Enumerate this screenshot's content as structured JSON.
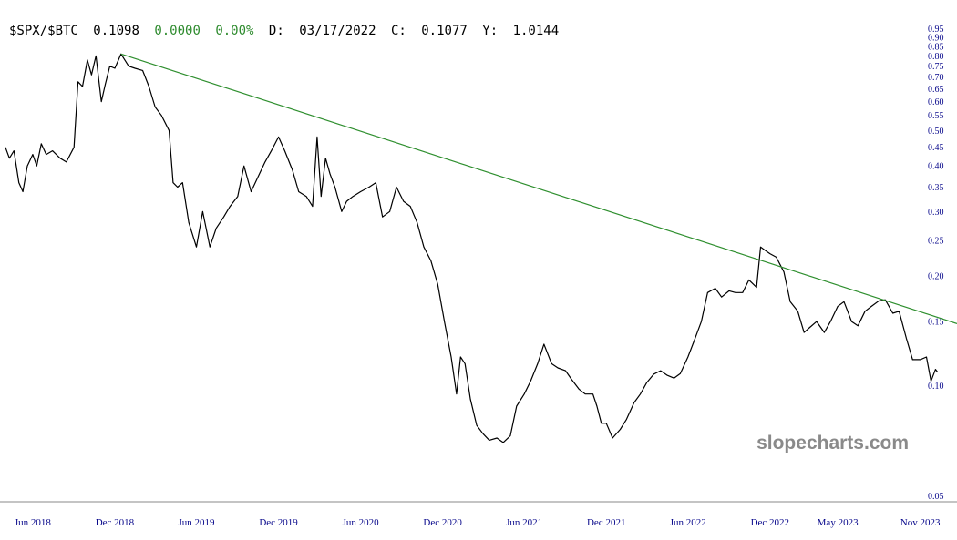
{
  "header": {
    "symbol": "$SPX/$BTC",
    "price": "0.1098",
    "change": "0.0000",
    "change_pct": "0.00%",
    "date_label": "D:",
    "date": "03/17/2022",
    "close_label": "C:",
    "close": "0.1077",
    "y_label": "Y:",
    "y_value": "1.0144"
  },
  "watermark": "slopecharts.com",
  "colors": {
    "price_line": "#000000",
    "trend_line": "#2f8f2f",
    "positive": "#2e8b2e",
    "axis_text": "#0a0a8c",
    "axis_line": "#888888",
    "watermark": "#8a8a8a"
  },
  "chart_data": {
    "type": "line",
    "y_scale": "log",
    "ylim": [
      0.05,
      0.95
    ],
    "y_ticks": [
      0.05,
      0.1,
      0.15,
      0.2,
      0.25,
      0.3,
      0.35,
      0.4,
      0.45,
      0.5,
      0.55,
      0.6,
      0.65,
      0.7,
      0.75,
      0.8,
      0.85,
      0.9,
      0.95
    ],
    "y_tick_labels": [
      "0.05",
      "0.10",
      "0.15",
      "0.20",
      "0.25",
      "0.30",
      "0.35",
      "0.40",
      "0.45",
      "0.50",
      "0.55",
      "0.60",
      "0.65",
      "0.70",
      "0.75",
      "0.80",
      "0.85",
      "0.90",
      "0.95"
    ],
    "xlim": [
      "2018-03-20",
      "2024-01-22"
    ],
    "x_ticks": [
      "2018-06-01",
      "2018-12-01",
      "2019-06-01",
      "2019-12-01",
      "2020-06-01",
      "2020-12-01",
      "2021-06-01",
      "2021-12-01",
      "2022-06-01",
      "2022-12-01",
      "2023-05-01",
      "2023-11-01"
    ],
    "x_tick_labels": [
      "Jun 2018",
      "Dec 2018",
      "Jun 2019",
      "Dec 2019",
      "Jun 2020",
      "Dec 2020",
      "Jun 2021",
      "Dec 2021",
      "Jun 2022",
      "Dec 2022",
      "May 2023",
      "Nov 2023"
    ],
    "grid": false,
    "series": [
      {
        "values": [
          [
            "2018-04-01",
            0.45
          ],
          [
            "2018-04-10",
            0.42
          ],
          [
            "2018-04-20",
            0.44
          ],
          [
            "2018-05-01",
            0.36
          ],
          [
            "2018-05-10",
            0.34
          ],
          [
            "2018-05-20",
            0.4
          ],
          [
            "2018-06-01",
            0.43
          ],
          [
            "2018-06-10",
            0.4
          ],
          [
            "2018-06-20",
            0.46
          ],
          [
            "2018-07-01",
            0.43
          ],
          [
            "2018-07-15",
            0.44
          ],
          [
            "2018-08-01",
            0.42
          ],
          [
            "2018-08-15",
            0.41
          ],
          [
            "2018-09-01",
            0.45
          ],
          [
            "2018-09-10",
            0.68
          ],
          [
            "2018-09-20",
            0.66
          ],
          [
            "2018-10-01",
            0.78
          ],
          [
            "2018-10-10",
            0.71
          ],
          [
            "2018-10-20",
            0.8
          ],
          [
            "2018-11-01",
            0.6
          ],
          [
            "2018-11-10",
            0.67
          ],
          [
            "2018-11-20",
            0.75
          ],
          [
            "2018-12-01",
            0.74
          ],
          [
            "2018-12-15",
            0.81
          ],
          [
            "2019-01-01",
            0.75
          ],
          [
            "2019-01-15",
            0.74
          ],
          [
            "2019-02-01",
            0.73
          ],
          [
            "2019-02-15",
            0.66
          ],
          [
            "2019-03-01",
            0.58
          ],
          [
            "2019-03-15",
            0.55
          ],
          [
            "2019-04-01",
            0.5
          ],
          [
            "2019-04-10",
            0.36
          ],
          [
            "2019-04-20",
            0.35
          ],
          [
            "2019-05-01",
            0.36
          ],
          [
            "2019-05-15",
            0.28
          ],
          [
            "2019-06-01",
            0.24
          ],
          [
            "2019-06-15",
            0.3
          ],
          [
            "2019-07-01",
            0.24
          ],
          [
            "2019-07-15",
            0.27
          ],
          [
            "2019-08-01",
            0.29
          ],
          [
            "2019-08-15",
            0.31
          ],
          [
            "2019-09-01",
            0.33
          ],
          [
            "2019-09-15",
            0.4
          ],
          [
            "2019-10-01",
            0.34
          ],
          [
            "2019-10-15",
            0.37
          ],
          [
            "2019-11-01",
            0.41
          ],
          [
            "2019-11-15",
            0.44
          ],
          [
            "2019-12-01",
            0.48
          ],
          [
            "2019-12-15",
            0.44
          ],
          [
            "2020-01-01",
            0.39
          ],
          [
            "2020-01-15",
            0.34
          ],
          [
            "2020-02-01",
            0.33
          ],
          [
            "2020-02-15",
            0.31
          ],
          [
            "2020-02-25",
            0.48
          ],
          [
            "2020-03-05",
            0.33
          ],
          [
            "2020-03-15",
            0.42
          ],
          [
            "2020-03-25",
            0.38
          ],
          [
            "2020-04-05",
            0.35
          ],
          [
            "2020-04-20",
            0.3
          ],
          [
            "2020-05-01",
            0.32
          ],
          [
            "2020-05-15",
            0.33
          ],
          [
            "2020-06-01",
            0.34
          ],
          [
            "2020-06-20",
            0.35
          ],
          [
            "2020-07-05",
            0.36
          ],
          [
            "2020-07-20",
            0.29
          ],
          [
            "2020-08-05",
            0.3
          ],
          [
            "2020-08-20",
            0.35
          ],
          [
            "2020-09-05",
            0.32
          ],
          [
            "2020-09-20",
            0.31
          ],
          [
            "2020-10-05",
            0.28
          ],
          [
            "2020-10-20",
            0.24
          ],
          [
            "2020-11-05",
            0.22
          ],
          [
            "2020-11-20",
            0.19
          ],
          [
            "2020-12-05",
            0.15
          ],
          [
            "2020-12-20",
            0.12
          ],
          [
            "2021-01-01",
            0.095
          ],
          [
            "2021-01-10",
            0.12
          ],
          [
            "2021-01-20",
            0.115
          ],
          [
            "2021-02-01",
            0.092
          ],
          [
            "2021-02-15",
            0.078
          ],
          [
            "2021-03-01",
            0.074
          ],
          [
            "2021-03-15",
            0.071
          ],
          [
            "2021-04-01",
            0.072
          ],
          [
            "2021-04-15",
            0.07
          ],
          [
            "2021-05-01",
            0.073
          ],
          [
            "2021-05-15",
            0.088
          ],
          [
            "2021-06-01",
            0.095
          ],
          [
            "2021-06-15",
            0.103
          ],
          [
            "2021-07-01",
            0.115
          ],
          [
            "2021-07-15",
            0.13
          ],
          [
            "2021-08-01",
            0.115
          ],
          [
            "2021-08-15",
            0.112
          ],
          [
            "2021-09-01",
            0.11
          ],
          [
            "2021-09-15",
            0.104
          ],
          [
            "2021-10-01",
            0.098
          ],
          [
            "2021-10-15",
            0.095
          ],
          [
            "2021-11-01",
            0.095
          ],
          [
            "2021-11-10",
            0.088
          ],
          [
            "2021-11-20",
            0.079
          ],
          [
            "2021-12-01",
            0.079
          ],
          [
            "2021-12-15",
            0.072
          ],
          [
            "2022-01-01",
            0.076
          ],
          [
            "2022-01-15",
            0.081
          ],
          [
            "2022-02-01",
            0.09
          ],
          [
            "2022-02-15",
            0.095
          ],
          [
            "2022-03-01",
            0.102
          ],
          [
            "2022-03-17",
            0.1077
          ],
          [
            "2022-04-01",
            0.11
          ],
          [
            "2022-04-15",
            0.107
          ],
          [
            "2022-05-01",
            0.105
          ],
          [
            "2022-05-15",
            0.108
          ],
          [
            "2022-06-01",
            0.12
          ],
          [
            "2022-06-15",
            0.133
          ],
          [
            "2022-07-01",
            0.15
          ],
          [
            "2022-07-15",
            0.18
          ],
          [
            "2022-08-01",
            0.185
          ],
          [
            "2022-08-15",
            0.175
          ],
          [
            "2022-09-01",
            0.182
          ],
          [
            "2022-09-15",
            0.18
          ],
          [
            "2022-10-01",
            0.18
          ],
          [
            "2022-10-15",
            0.195
          ],
          [
            "2022-11-01",
            0.186
          ],
          [
            "2022-11-10",
            0.24
          ],
          [
            "2022-11-20",
            0.235
          ],
          [
            "2022-12-01",
            0.23
          ],
          [
            "2022-12-15",
            0.225
          ],
          [
            "2023-01-01",
            0.205
          ],
          [
            "2023-01-15",
            0.17
          ],
          [
            "2023-02-01",
            0.16
          ],
          [
            "2023-02-15",
            0.14
          ],
          [
            "2023-03-01",
            0.145
          ],
          [
            "2023-03-15",
            0.15
          ],
          [
            "2023-04-01",
            0.14
          ],
          [
            "2023-04-15",
            0.15
          ],
          [
            "2023-05-01",
            0.165
          ],
          [
            "2023-05-15",
            0.17
          ],
          [
            "2023-06-01",
            0.15
          ],
          [
            "2023-06-15",
            0.146
          ],
          [
            "2023-07-01",
            0.16
          ],
          [
            "2023-07-15",
            0.165
          ],
          [
            "2023-08-01",
            0.171
          ],
          [
            "2023-08-15",
            0.172
          ],
          [
            "2023-09-01",
            0.158
          ],
          [
            "2023-09-15",
            0.16
          ],
          [
            "2023-10-01",
            0.135
          ],
          [
            "2023-10-15",
            0.118
          ],
          [
            "2023-11-01",
            0.118
          ],
          [
            "2023-11-15",
            0.12
          ],
          [
            "2023-11-25",
            0.103
          ],
          [
            "2023-12-05",
            0.111
          ],
          [
            "2023-12-10",
            0.109
          ]
        ]
      },
      {
        "values": [
          [
            "2018-12-15",
            0.81
          ],
          [
            "2024-01-22",
            0.148
          ]
        ]
      }
    ]
  }
}
